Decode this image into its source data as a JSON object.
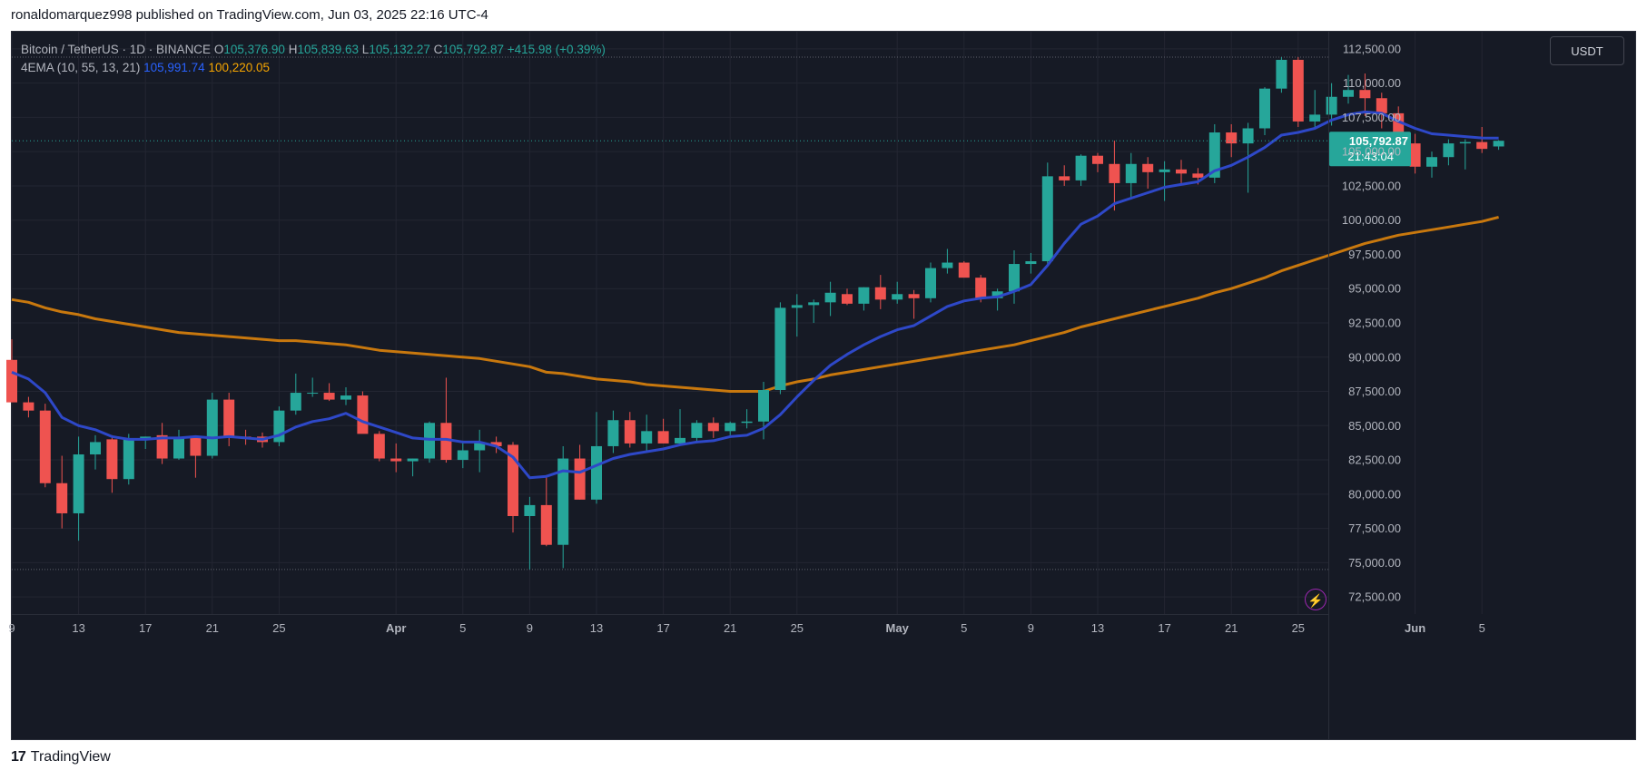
{
  "header": {
    "published": "ronaldomarquez998 published on TradingView.com, Jun 03, 2025 22:16 UTC-4"
  },
  "legend": {
    "symbol": "Bitcoin / TetherUS · 1D · BINANCE",
    "o_label": "O",
    "o_value": "105,376.90",
    "h_label": "H",
    "h_value": "105,839.63",
    "l_label": "L",
    "l_value": "105,132.27",
    "c_label": "C",
    "c_value": "105,792.87",
    "change": "+415.98 (+0.39%)",
    "indicator": "4EMA (10, 55, 13, 21)",
    "ema_fast_value": "105,991.74",
    "ema_slow_value": "100,220.05"
  },
  "toolbar": {
    "currency_label": "USDT"
  },
  "price_tag": {
    "value": "105,792.87",
    "countdown": "21:43:04"
  },
  "footer": {
    "brand": "TradingView",
    "logo_glyph": "17"
  },
  "icons": {
    "bolt": "⚡"
  },
  "colors": {
    "up": "#26a69a",
    "down": "#ef5350",
    "ema_fast": "#2e48c8",
    "ema_slow": "#c8780e",
    "background": "#161a25"
  },
  "chart_data": {
    "type": "candlestick",
    "ylim": [
      71250,
      113750
    ],
    "yticks": [
      "72,500.00",
      "75,000.00",
      "77,500.00",
      "80,000.00",
      "82,500.00",
      "85,000.00",
      "87,500.00",
      "90,000.00",
      "92,500.00",
      "95,000.00",
      "97,500.00",
      "100,000.00",
      "102,500.00",
      "105,000.00",
      "107,500.00",
      "110,000.00",
      "112,500.00"
    ],
    "ytick_values": [
      72500,
      75000,
      77500,
      80000,
      82500,
      85000,
      87500,
      90000,
      92500,
      95000,
      97500,
      100000,
      102500,
      105000,
      107500,
      110000,
      112500
    ],
    "xticks": [
      {
        "label": "9",
        "day": 0
      },
      {
        "label": "13",
        "day": 4
      },
      {
        "label": "17",
        "day": 8
      },
      {
        "label": "21",
        "day": 12
      },
      {
        "label": "25",
        "day": 16
      },
      {
        "label": "Apr",
        "day": 23
      },
      {
        "label": "5",
        "day": 27
      },
      {
        "label": "9",
        "day": 31
      },
      {
        "label": "13",
        "day": 35
      },
      {
        "label": "17",
        "day": 39
      },
      {
        "label": "21",
        "day": 43
      },
      {
        "label": "25",
        "day": 47
      },
      {
        "label": "May",
        "day": 53
      },
      {
        "label": "5",
        "day": 57
      },
      {
        "label": "9",
        "day": 61
      },
      {
        "label": "13",
        "day": 65
      },
      {
        "label": "17",
        "day": 69
      },
      {
        "label": "21",
        "day": 73
      },
      {
        "label": "25",
        "day": 77
      },
      {
        "label": "Jun",
        "day": 84
      },
      {
        "label": "5",
        "day": 88
      }
    ],
    "candles": [
      {
        "o": 89800,
        "h": 91300,
        "l": 86800,
        "c": 86700
      },
      {
        "o": 86700,
        "h": 87100,
        "l": 85600,
        "c": 86100
      },
      {
        "o": 86100,
        "h": 86600,
        "l": 80500,
        "c": 80800
      },
      {
        "o": 80800,
        "h": 82800,
        "l": 77500,
        "c": 78600
      },
      {
        "o": 78600,
        "h": 84200,
        "l": 76600,
        "c": 82900
      },
      {
        "o": 82900,
        "h": 84300,
        "l": 81800,
        "c": 83800
      },
      {
        "o": 84000,
        "h": 84300,
        "l": 80100,
        "c": 81100
      },
      {
        "o": 81100,
        "h": 84400,
        "l": 80700,
        "c": 84000
      },
      {
        "o": 84000,
        "h": 84200,
        "l": 83300,
        "c": 84200
      },
      {
        "o": 84300,
        "h": 85200,
        "l": 82200,
        "c": 82600
      },
      {
        "o": 82600,
        "h": 84700,
        "l": 82500,
        "c": 84100
      },
      {
        "o": 84100,
        "h": 84200,
        "l": 81200,
        "c": 82800
      },
      {
        "o": 82800,
        "h": 87400,
        "l": 82600,
        "c": 86900
      },
      {
        "o": 86900,
        "h": 87400,
        "l": 83500,
        "c": 84200
      },
      {
        "o": 84200,
        "h": 84700,
        "l": 83600,
        "c": 84100
      },
      {
        "o": 84200,
        "h": 84500,
        "l": 83400,
        "c": 83800
      },
      {
        "o": 83800,
        "h": 86400,
        "l": 83500,
        "c": 86100
      },
      {
        "o": 86100,
        "h": 88800,
        "l": 85800,
        "c": 87400
      },
      {
        "o": 87400,
        "h": 88500,
        "l": 87100,
        "c": 87400
      },
      {
        "o": 87400,
        "h": 88100,
        "l": 86800,
        "c": 86900
      },
      {
        "o": 86900,
        "h": 87800,
        "l": 86500,
        "c": 87200
      },
      {
        "o": 87200,
        "h": 87500,
        "l": 84600,
        "c": 84400
      },
      {
        "o": 84400,
        "h": 84600,
        "l": 82400,
        "c": 82600
      },
      {
        "o": 82600,
        "h": 83700,
        "l": 81600,
        "c": 82400
      },
      {
        "o": 82400,
        "h": 82600,
        "l": 81300,
        "c": 82600
      },
      {
        "o": 82600,
        "h": 85300,
        "l": 82300,
        "c": 85200
      },
      {
        "o": 85200,
        "h": 88500,
        "l": 82300,
        "c": 82500
      },
      {
        "o": 82500,
        "h": 83900,
        "l": 81900,
        "c": 83200
      },
      {
        "o": 83200,
        "h": 84700,
        "l": 81600,
        "c": 83800
      },
      {
        "o": 83800,
        "h": 84200,
        "l": 83000,
        "c": 83500
      },
      {
        "o": 83600,
        "h": 83800,
        "l": 77200,
        "c": 78400
      },
      {
        "o": 78400,
        "h": 79800,
        "l": 74500,
        "c": 79200
      },
      {
        "o": 79200,
        "h": 81400,
        "l": 76200,
        "c": 76300
      },
      {
        "o": 76300,
        "h": 83500,
        "l": 74600,
        "c": 82600
      },
      {
        "o": 82600,
        "h": 83600,
        "l": 79600,
        "c": 79600
      },
      {
        "o": 79600,
        "h": 86000,
        "l": 79300,
        "c": 83500
      },
      {
        "o": 83500,
        "h": 86100,
        "l": 83000,
        "c": 85400
      },
      {
        "o": 85400,
        "h": 86000,
        "l": 83400,
        "c": 83700
      },
      {
        "o": 83700,
        "h": 85800,
        "l": 83000,
        "c": 84600
      },
      {
        "o": 84600,
        "h": 85500,
        "l": 83700,
        "c": 83700
      },
      {
        "o": 83700,
        "h": 86200,
        "l": 83600,
        "c": 84100
      },
      {
        "o": 84100,
        "h": 85400,
        "l": 83800,
        "c": 85200
      },
      {
        "o": 85200,
        "h": 85600,
        "l": 84100,
        "c": 84600
      },
      {
        "o": 84600,
        "h": 85300,
        "l": 84300,
        "c": 85200
      },
      {
        "o": 85200,
        "h": 86200,
        "l": 84800,
        "c": 85300
      },
      {
        "o": 85300,
        "h": 88200,
        "l": 84000,
        "c": 87600
      },
      {
        "o": 87600,
        "h": 94000,
        "l": 87300,
        "c": 93600
      },
      {
        "o": 93600,
        "h": 94600,
        "l": 91500,
        "c": 93800
      },
      {
        "o": 93800,
        "h": 94200,
        "l": 92500,
        "c": 94000
      },
      {
        "o": 94000,
        "h": 95500,
        "l": 93000,
        "c": 94700
      },
      {
        "o": 94600,
        "h": 95000,
        "l": 93800,
        "c": 93900
      },
      {
        "o": 93900,
        "h": 95100,
        "l": 93400,
        "c": 95100
      },
      {
        "o": 95100,
        "h": 96000,
        "l": 93500,
        "c": 94200
      },
      {
        "o": 94200,
        "h": 95500,
        "l": 93900,
        "c": 94600
      },
      {
        "o": 94600,
        "h": 94900,
        "l": 92800,
        "c": 94300
      },
      {
        "o": 94300,
        "h": 96900,
        "l": 94000,
        "c": 96500
      },
      {
        "o": 96500,
        "h": 97900,
        "l": 96100,
        "c": 96900
      },
      {
        "o": 96900,
        "h": 97000,
        "l": 95900,
        "c": 95800
      },
      {
        "o": 95800,
        "h": 96000,
        "l": 94000,
        "c": 94300
      },
      {
        "o": 94300,
        "h": 95000,
        "l": 93400,
        "c": 94800
      },
      {
        "o": 94800,
        "h": 97800,
        "l": 93900,
        "c": 96800
      },
      {
        "o": 96800,
        "h": 97600,
        "l": 96100,
        "c": 97000
      },
      {
        "o": 97000,
        "h": 104200,
        "l": 96700,
        "c": 103200
      },
      {
        "o": 103200,
        "h": 104000,
        "l": 102500,
        "c": 102900
      },
      {
        "o": 102900,
        "h": 104800,
        "l": 102500,
        "c": 104700
      },
      {
        "o": 104700,
        "h": 104900,
        "l": 103500,
        "c": 104100
      },
      {
        "o": 104100,
        "h": 105800,
        "l": 100700,
        "c": 102700
      },
      {
        "o": 102700,
        "h": 104900,
        "l": 101500,
        "c": 104100
      },
      {
        "o": 104100,
        "h": 104600,
        "l": 102300,
        "c": 103500
      },
      {
        "o": 103500,
        "h": 104300,
        "l": 101400,
        "c": 103700
      },
      {
        "o": 103700,
        "h": 104400,
        "l": 102700,
        "c": 103400
      },
      {
        "o": 103400,
        "h": 103800,
        "l": 102600,
        "c": 103100
      },
      {
        "o": 103100,
        "h": 107000,
        "l": 102700,
        "c": 106400
      },
      {
        "o": 106400,
        "h": 107000,
        "l": 104600,
        "c": 105600
      },
      {
        "o": 105600,
        "h": 107100,
        "l": 102000,
        "c": 106700
      },
      {
        "o": 106700,
        "h": 109700,
        "l": 106200,
        "c": 109600
      },
      {
        "o": 109600,
        "h": 111900,
        "l": 109300,
        "c": 111700
      },
      {
        "o": 111700,
        "h": 111900,
        "l": 106800,
        "c": 107200
      },
      {
        "o": 107200,
        "h": 109500,
        "l": 106700,
        "c": 107700
      },
      {
        "o": 107700,
        "h": 110000,
        "l": 106900,
        "c": 109000
      },
      {
        "o": 109000,
        "h": 110600,
        "l": 108500,
        "c": 109500
      },
      {
        "o": 109500,
        "h": 110700,
        "l": 107600,
        "c": 108900
      },
      {
        "o": 108900,
        "h": 109300,
        "l": 106700,
        "c": 107800
      },
      {
        "o": 107800,
        "h": 108300,
        "l": 105400,
        "c": 105600
      },
      {
        "o": 105600,
        "h": 106300,
        "l": 103400,
        "c": 103900
      },
      {
        "o": 103900,
        "h": 105000,
        "l": 103100,
        "c": 104600
      },
      {
        "o": 104600,
        "h": 105900,
        "l": 104000,
        "c": 105600
      },
      {
        "o": 105600,
        "h": 105900,
        "l": 103700,
        "c": 105700
      },
      {
        "o": 105700,
        "h": 106800,
        "l": 104900,
        "c": 105200
      },
      {
        "o": 105376.9,
        "h": 105839.63,
        "l": 105132.27,
        "c": 105792.87
      }
    ],
    "ema_fast_name": "EMA 10",
    "ema_fast": [
      88900,
      88400,
      87400,
      85600,
      85000,
      84700,
      84200,
      84000,
      84000,
      84100,
      84100,
      84200,
      84100,
      84200,
      84100,
      84000,
      84300,
      84900,
      85300,
      85500,
      85900,
      85300,
      84900,
      84500,
      84100,
      84000,
      84000,
      83800,
      83800,
      83500,
      82700,
      81200,
      81300,
      81700,
      81600,
      82100,
      82600,
      82900,
      83100,
      83300,
      83600,
      83800,
      83900,
      84200,
      84300,
      84800,
      85800,
      87100,
      88300,
      89400,
      90200,
      90900,
      91500,
      92000,
      92300,
      93000,
      93700,
      94100,
      94300,
      94400,
      94800,
      95300,
      96700,
      98300,
      99700,
      100300,
      101200,
      101600,
      102000,
      102400,
      102600,
      102800,
      103600,
      104000,
      104600,
      105300,
      106200,
      106400,
      106700,
      107300,
      107700,
      107900,
      107800,
      107200,
      106700,
      106300,
      106200,
      106100,
      106000,
      105991.74
    ],
    "ema_slow_name": "EMA 55",
    "ema_slow": [
      94200,
      94000,
      93600,
      93300,
      93100,
      92800,
      92600,
      92400,
      92200,
      92000,
      91800,
      91700,
      91600,
      91500,
      91400,
      91300,
      91200,
      91200,
      91100,
      91000,
      90900,
      90700,
      90500,
      90400,
      90300,
      90200,
      90100,
      90000,
      89900,
      89700,
      89500,
      89300,
      88900,
      88800,
      88600,
      88400,
      88300,
      88200,
      88000,
      87900,
      87800,
      87700,
      87600,
      87500,
      87500,
      87500,
      87900,
      88200,
      88400,
      88700,
      88900,
      89100,
      89300,
      89500,
      89700,
      89900,
      90100,
      90300,
      90500,
      90700,
      90900,
      91200,
      91500,
      91800,
      92200,
      92500,
      92800,
      93100,
      93400,
      93700,
      94000,
      94300,
      94700,
      95000,
      95400,
      95800,
      96300,
      96700,
      97100,
      97500,
      97900,
      98300,
      98600,
      98900,
      99100,
      99300,
      99500,
      99700,
      99900,
      100220.05
    ]
  }
}
